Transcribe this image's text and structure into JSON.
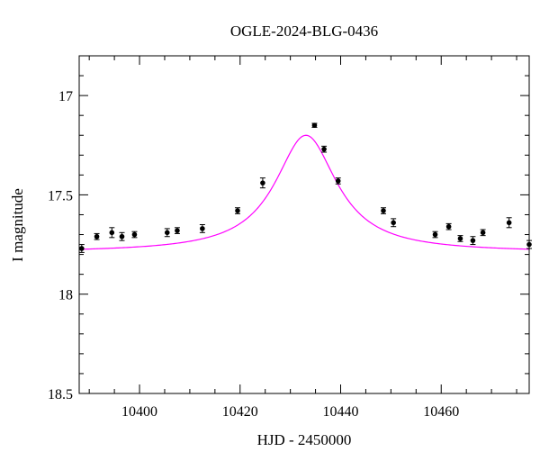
{
  "chart_data": {
    "type": "scatter",
    "title": "OGLE-2024-BLG-0436",
    "xlabel": "HJD - 2450000",
    "ylabel": "I magnitude",
    "xlim": [
      10388,
      10477.5
    ],
    "ylim": [
      18.5,
      16.8
    ],
    "y_inverted": true,
    "x_ticks": [
      10400,
      10420,
      10440,
      10460
    ],
    "x_tick_labels": [
      "10400",
      "10420",
      "10440",
      "10460"
    ],
    "x_minor_step": 5,
    "y_ticks": [
      17,
      17.5,
      18,
      18.5
    ],
    "y_tick_labels": [
      "17",
      "17.5",
      "18",
      "18.5"
    ],
    "y_minor_step": 0.1,
    "grid": false,
    "point_color": "#000000",
    "model_color": "#ff00ff",
    "series": [
      {
        "kind": "points",
        "x": [
          10388.5,
          10391.5,
          10394.5,
          10396.5,
          10399,
          10405.5,
          10407.5,
          10412.5,
          10419.5,
          10424.5,
          10434.8,
          10436.7,
          10439.5,
          10448.5,
          10450.5,
          10458.8,
          10461.5,
          10463.8,
          10466.3,
          10468.3,
          10473.5,
          10477.5
        ],
        "y": [
          17.77,
          17.71,
          17.69,
          17.71,
          17.7,
          17.69,
          17.68,
          17.67,
          17.58,
          17.44,
          17.15,
          17.27,
          17.43,
          17.58,
          17.64,
          17.7,
          17.66,
          17.72,
          17.73,
          17.69,
          17.64,
          17.75
        ],
        "yerr": [
          0.02,
          0.015,
          0.025,
          0.02,
          0.015,
          0.02,
          0.015,
          0.02,
          0.015,
          0.025,
          0.01,
          0.015,
          0.015,
          0.015,
          0.02,
          0.015,
          0.015,
          0.015,
          0.02,
          0.015,
          0.025,
          0.02
        ]
      },
      {
        "kind": "model",
        "t0": 10433.1,
        "tE": 7.5,
        "baseline": 17.79,
        "peak": 17.2,
        "x_range": [
          10388,
          10477.5
        ]
      }
    ]
  }
}
